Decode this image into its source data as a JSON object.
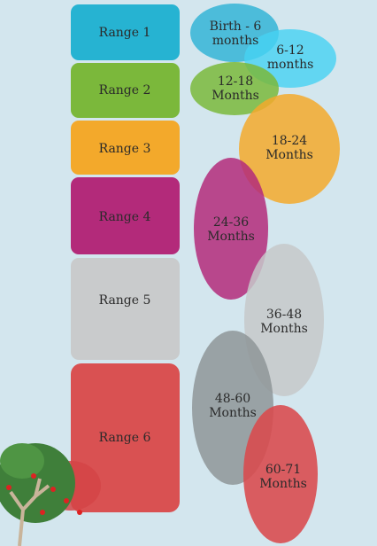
{
  "ranges": [
    "Range 1",
    "Range 2",
    "Range 3",
    "Range 4",
    "Range 5",
    "Range 6"
  ],
  "bubbles": [
    {
      "lines": [
        "Birth - 6",
        "months"
      ]
    },
    {
      "lines": [
        "6-12",
        "months"
      ]
    },
    {
      "lines": [
        "12-18",
        "Months"
      ]
    },
    {
      "lines": [
        "18-24",
        "Months"
      ]
    },
    {
      "lines": [
        "24-36",
        "Months"
      ]
    },
    {
      "lines": [
        "36-48",
        "Months"
      ]
    },
    {
      "lines": [
        "48-60",
        "Months"
      ]
    },
    {
      "lines": [
        "60-71",
        "Months"
      ]
    }
  ]
}
